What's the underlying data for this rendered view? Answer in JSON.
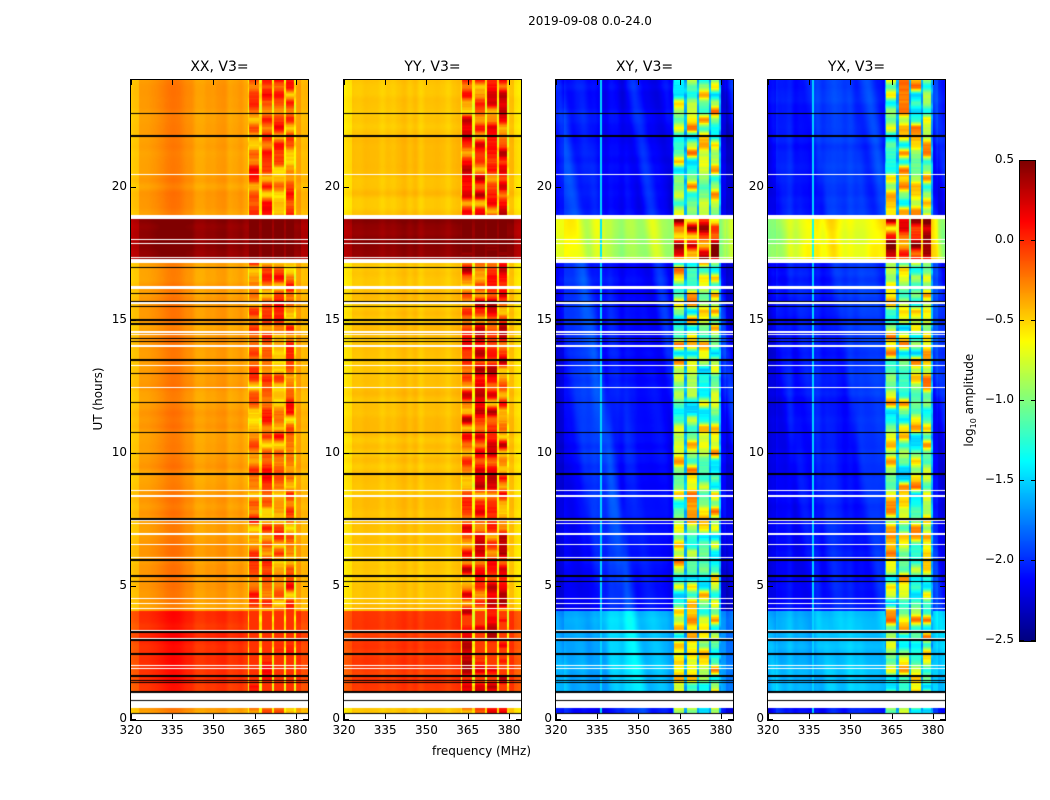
{
  "chart_data": {
    "type": "heatmap",
    "title": "2019-09-08 0.0-24.0",
    "xlabel": "frequency (MHz)",
    "ylabel": "UT (hours)",
    "xlim": [
      320,
      384.4
    ],
    "ylim": [
      0,
      24
    ],
    "xticks": [
      "320",
      "335",
      "350",
      "365",
      "380"
    ],
    "xtick_values": [
      320,
      335,
      350,
      365,
      380
    ],
    "yticks": [
      "0",
      "5",
      "10",
      "15",
      "20"
    ],
    "ytick_values": [
      0,
      5,
      10,
      15,
      20
    ],
    "colormap": "jet",
    "colorbar": {
      "label_prefix": "log",
      "label_sub": "10",
      "label_suffix": " amplitude",
      "range": [
        -2.5,
        0.5
      ],
      "ticks": [
        "0.5",
        "0.0",
        "−0.5",
        "−1.0",
        "−1.5",
        "−2.0",
        "−2.5"
      ],
      "tick_values": [
        0.5,
        0.0,
        -0.5,
        -1.0,
        -1.5,
        -2.0,
        -2.5
      ]
    },
    "panels": [
      {
        "title": "XX, V3=",
        "quiet": -0.35,
        "high": 0.45,
        "mid": -0.02,
        "bump": 0.12,
        "rfi_level": -0.2,
        "rfi_var": 0.35,
        "gap_level": -0.6,
        "cross": false
      },
      {
        "title": "YY, V3=",
        "quiet": -0.45,
        "high": 0.45,
        "mid": -0.05,
        "bump": 0.0,
        "rfi_level": -0.05,
        "rfi_var": 0.45,
        "gap_level": -0.6,
        "cross": false
      },
      {
        "title": "XY, V3=",
        "quiet": -2.05,
        "high": -0.75,
        "mid": -1.55,
        "bump": 0.0,
        "rfi_level": -0.85,
        "rfi_var": 0.7,
        "gap_level": -1.6,
        "cross": true
      },
      {
        "title": "YX, V3=",
        "quiet": -2.05,
        "high": -0.75,
        "mid": -1.55,
        "bump": 0.0,
        "rfi_level": -0.85,
        "rfi_var": 0.7,
        "gap_level": -1.6,
        "cross": true
      }
    ],
    "rfi_columns_mhz": [
      [
        363,
        366.6
      ],
      [
        367.6,
        371.2
      ],
      [
        372.2,
        375.6
      ],
      [
        376.4,
        379.4
      ]
    ],
    "regimes": [
      {
        "name": "high",
        "hours": [
          17.15,
          18.85
        ]
      },
      {
        "name": "mid",
        "hours": [
          1.1,
          4.1
        ]
      }
    ],
    "flagged_hours": [
      [
        0,
        0.22
      ],
      [
        0.45,
        0.72
      ],
      [
        0.75,
        1.02
      ],
      [
        1.9,
        1.95
      ],
      [
        2.03,
        2.07
      ],
      [
        3.03,
        3.06
      ],
      [
        3.33,
        3.36
      ],
      [
        4.15,
        4.2
      ],
      [
        4.35,
        4.38
      ],
      [
        4.52,
        4.56
      ],
      [
        6.06,
        6.1
      ],
      [
        6.55,
        6.6
      ],
      [
        6.95,
        7.0
      ],
      [
        7.35,
        7.38
      ],
      [
        7.45,
        7.5
      ],
      [
        8.38,
        8.42
      ],
      [
        8.58,
        8.62
      ],
      [
        12.45,
        12.48
      ],
      [
        12.55,
        12.58
      ],
      [
        13.28,
        13.33
      ],
      [
        13.98,
        14.05
      ],
      [
        14.43,
        14.47
      ],
      [
        14.53,
        14.57
      ],
      [
        15.6,
        15.66
      ],
      [
        16.18,
        16.22
      ],
      [
        16.25,
        16.28
      ],
      [
        17.15,
        17.3
      ],
      [
        17.33,
        17.36
      ],
      [
        17.85,
        17.9
      ],
      [
        18.0,
        18.03
      ],
      [
        18.1,
        18.13
      ],
      [
        18.8,
        18.95
      ],
      [
        20.43,
        20.47
      ]
    ],
    "black_line_hours": [
      0.22,
      0.75,
      1.05,
      1.4,
      1.47,
      1.65,
      2.45,
      2.5,
      3.0,
      3.3,
      5.2,
      5.4,
      6.0,
      7.54,
      9.23,
      10.0,
      10.77,
      11.9,
      13.0,
      13.5,
      14.2,
      14.3,
      14.85,
      15.0,
      15.5,
      15.7,
      16.0,
      16.96,
      21.9,
      22.74
    ]
  }
}
